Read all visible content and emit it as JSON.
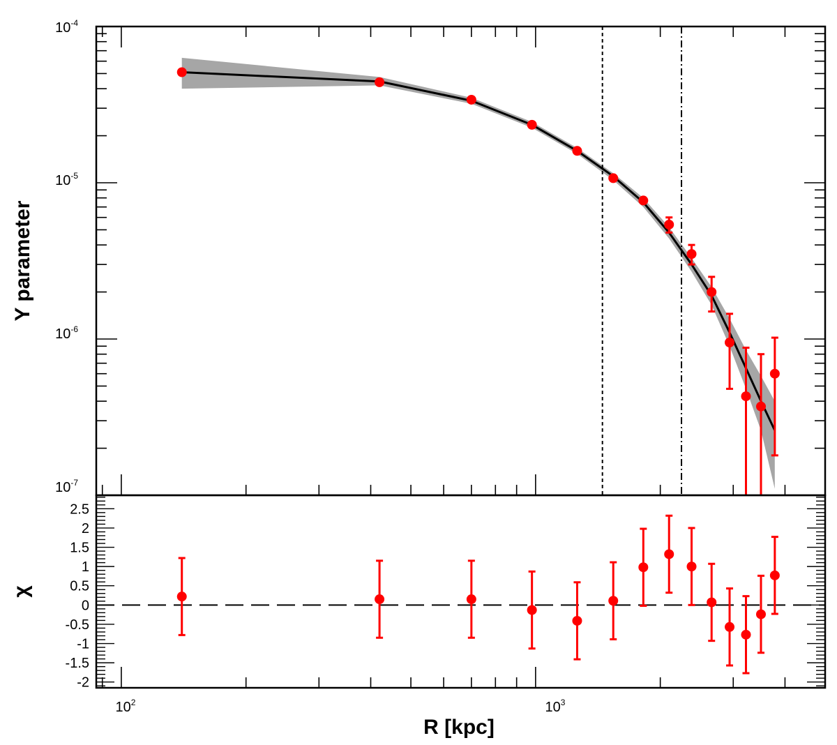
{
  "chart_data": [
    {
      "panel": "top",
      "type": "scatter",
      "xscale": "log",
      "yscale": "log",
      "xlim": [
        87,
        5000
      ],
      "ylim": [
        1e-07,
        0.0001
      ],
      "xlabel": "R [kpc]",
      "ylabel": "Y parameter",
      "ytick_labels": [
        {
          "mantissa": "10",
          "exponent": "-7",
          "value": 1e-07
        },
        {
          "mantissa": "10",
          "exponent": "-6",
          "value": 1e-06
        },
        {
          "mantissa": "10",
          "exponent": "-5",
          "value": 1e-05
        },
        {
          "mantissa": "10",
          "exponent": "-4",
          "value": 0.0001
        }
      ],
      "points": [
        {
          "x": 140,
          "y": 5.1e-05,
          "yerr_low": 5.1e-05,
          "yerr_high": 5.1e-05
        },
        {
          "x": 420,
          "y": 4.4e-05,
          "yerr_low": 4.4e-05,
          "yerr_high": 4.4e-05
        },
        {
          "x": 700,
          "y": 3.4e-05,
          "yerr_low": 3.4e-05,
          "yerr_high": 3.4e-05
        },
        {
          "x": 980,
          "y": 2.35e-05,
          "yerr_low": 2.35e-05,
          "yerr_high": 2.35e-05
        },
        {
          "x": 1260,
          "y": 1.6e-05,
          "yerr_low": 1.6e-05,
          "yerr_high": 1.6e-05
        },
        {
          "x": 1540,
          "y": 1.07e-05,
          "yerr_low": 1.07e-05,
          "yerr_high": 1.07e-05
        },
        {
          "x": 1820,
          "y": 7.7e-06,
          "yerr_low": 7.7e-06,
          "yerr_high": 7.7e-06
        },
        {
          "x": 2100,
          "y": 5.4e-06,
          "yerr_low": 4.8e-06,
          "yerr_high": 6e-06
        },
        {
          "x": 2380,
          "y": 3.5e-06,
          "yerr_low": 3e-06,
          "yerr_high": 4e-06
        },
        {
          "x": 2660,
          "y": 2e-06,
          "yerr_low": 1.5e-06,
          "yerr_high": 2.5e-06
        },
        {
          "x": 2940,
          "y": 9.5e-07,
          "yerr_low": 4.8e-07,
          "yerr_high": 1.45e-06
        },
        {
          "x": 3220,
          "y": 4.3e-07,
          "yerr_low": 5e-08,
          "yerr_high": 8.8e-07
        },
        {
          "x": 3500,
          "y": 3.7e-07,
          "yerr_low": 5e-08,
          "yerr_high": 8e-07
        },
        {
          "x": 3780,
          "y": 6e-07,
          "yerr_low": 1.8e-07,
          "yerr_high": 1.02e-06
        }
      ],
      "model_curve": {
        "x": [
          140,
          420,
          700,
          980,
          1260,
          1540,
          1820,
          2100,
          2380,
          2660,
          2940,
          3220,
          3500,
          3780
        ],
        "y": [
          5.1e-05,
          4.45e-05,
          3.35e-05,
          2.35e-05,
          1.6e-05,
          1.1e-05,
          7.5e-06,
          4.8e-06,
          3e-06,
          1.9e-06,
          1.1e-06,
          6.5e-07,
          4e-07,
          2.6e-07
        ],
        "band_low": [
          4e-05,
          4.2e-05,
          3.2e-05,
          2.25e-05,
          1.53e-05,
          1.04e-05,
          7e-06,
          4.4e-06,
          2.7e-06,
          1.65e-06,
          9e-07,
          4.8e-07,
          2.6e-07,
          1.1e-07
        ],
        "band_high": [
          6.3e-05,
          4.75e-05,
          3.5e-05,
          2.45e-05,
          1.67e-05,
          1.15e-05,
          8e-06,
          5.2e-06,
          3.3e-06,
          2.15e-06,
          1.35e-06,
          8.5e-07,
          5.8e-07,
          4e-07
        ]
      },
      "vertical_lines": [
        {
          "x": 1450,
          "style": "dotted"
        },
        {
          "x": 2250,
          "style": "dash-dot"
        }
      ],
      "colors": {
        "points": "#ff0000",
        "curve": "#000000",
        "band": "#a6a6a6"
      }
    },
    {
      "panel": "bottom",
      "type": "scatter",
      "xscale": "log",
      "xlim": [
        87,
        5000
      ],
      "ylim": [
        -2.15,
        2.85
      ],
      "xlabel": "R [kpc]",
      "ylabel": "χ",
      "xtick_labels": [
        {
          "mantissa": "10",
          "exponent": "2",
          "value": 100
        },
        {
          "mantissa": "10",
          "exponent": "3",
          "value": 1000
        }
      ],
      "ytick_labels": [
        "2.5",
        "2",
        "1.5",
        "1",
        "0.5",
        "0",
        "-0.5",
        "-1",
        "-1.5",
        "-2"
      ],
      "ytick_values": [
        2.5,
        2,
        1.5,
        1,
        0.5,
        0,
        -0.5,
        -1,
        -1.5,
        -2
      ],
      "points": [
        {
          "x": 140,
          "y": 0.22,
          "err": 1.0
        },
        {
          "x": 420,
          "y": 0.15,
          "err": 1.0
        },
        {
          "x": 700,
          "y": 0.15,
          "err": 1.0
        },
        {
          "x": 980,
          "y": -0.13,
          "err": 1.0
        },
        {
          "x": 1260,
          "y": -0.41,
          "err": 1.0
        },
        {
          "x": 1540,
          "y": 0.11,
          "err": 1.0
        },
        {
          "x": 1820,
          "y": 0.98,
          "err": 1.0
        },
        {
          "x": 2100,
          "y": 1.32,
          "err": 1.0
        },
        {
          "x": 2380,
          "y": 1.0,
          "err": 1.0
        },
        {
          "x": 2660,
          "y": 0.07,
          "err": 1.0
        },
        {
          "x": 2940,
          "y": -0.57,
          "err": 1.0
        },
        {
          "x": 3220,
          "y": -0.77,
          "err": 1.0
        },
        {
          "x": 3500,
          "y": -0.24,
          "err": 1.0
        },
        {
          "x": 3780,
          "y": 0.77,
          "err": 1.0
        }
      ],
      "reference_line": {
        "y": 0,
        "style": "long-dash"
      },
      "colors": {
        "points": "#ff0000"
      }
    }
  ]
}
